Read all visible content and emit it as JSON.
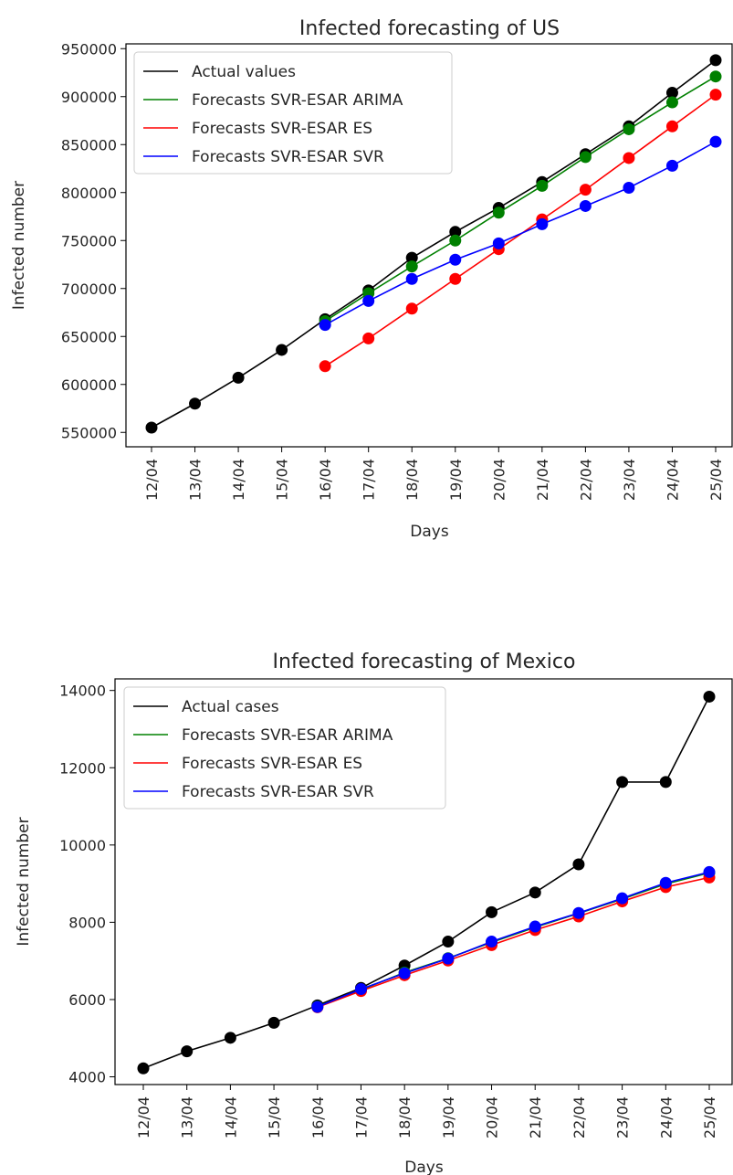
{
  "chart_data": [
    {
      "type": "line",
      "title": "Infected forecasting of US",
      "xlabel": "Days",
      "ylabel": "Infected number",
      "categories": [
        "12/04",
        "13/04",
        "14/04",
        "15/04",
        "16/04",
        "17/04",
        "18/04",
        "19/04",
        "20/04",
        "21/04",
        "22/04",
        "23/04",
        "24/04",
        "25/04"
      ],
      "ylim": [
        535000,
        955000
      ],
      "yticks": [
        550000,
        600000,
        650000,
        700000,
        750000,
        800000,
        850000,
        900000,
        950000
      ],
      "grid": false,
      "legend_position": "top-left",
      "series": [
        {
          "name": "Actual values",
          "color": "#000000",
          "values": [
            555000,
            580000,
            607000,
            636000,
            668000,
            698000,
            732000,
            759000,
            784000,
            811000,
            840000,
            869000,
            904000,
            938000
          ]
        },
        {
          "name": "Forecasts SVR-ESAR ARIMA",
          "color": "#008000",
          "values": [
            null,
            null,
            null,
            null,
            666000,
            695000,
            723000,
            750000,
            779000,
            807000,
            837000,
            866000,
            894000,
            921000
          ]
        },
        {
          "name": "Forecasts SVR-ESAR ES",
          "color": "#ff0000",
          "values": [
            null,
            null,
            null,
            null,
            619000,
            648000,
            679000,
            710000,
            741000,
            772000,
            803000,
            836000,
            869000,
            902000
          ]
        },
        {
          "name": "Forecasts SVR-ESAR SVR",
          "color": "#0000ff",
          "values": [
            null,
            null,
            null,
            null,
            662000,
            687000,
            710000,
            730000,
            747000,
            767000,
            786000,
            805000,
            828000,
            853000
          ]
        }
      ]
    },
    {
      "type": "line",
      "title": "Infected forecasting of Mexico",
      "xlabel": "Days",
      "ylabel": "Infected number",
      "categories": [
        "12/04",
        "13/04",
        "14/04",
        "15/04",
        "16/04",
        "17/04",
        "18/04",
        "19/04",
        "20/04",
        "21/04",
        "22/04",
        "23/04",
        "24/04",
        "25/04"
      ],
      "ylim": [
        3800,
        14300
      ],
      "yticks": [
        4000,
        6000,
        8000,
        10000,
        12000,
        14000
      ],
      "grid": false,
      "legend_position": "top-left",
      "series": [
        {
          "name": "Actual cases",
          "color": "#000000",
          "values": [
            4220,
            4660,
            5010,
            5400,
            5850,
            6300,
            6880,
            7500,
            8260,
            8770,
            9500,
            11630,
            11630,
            13840
          ]
        },
        {
          "name": "Forecasts SVR-ESAR ARIMA",
          "color": "#008000",
          "values": [
            null,
            null,
            null,
            null,
            5820,
            6250,
            6700,
            7070,
            7480,
            7870,
            8230,
            8600,
            8990,
            9280
          ]
        },
        {
          "name": "Forecasts SVR-ESAR ES",
          "color": "#ff0000",
          "values": [
            null,
            null,
            null,
            null,
            5800,
            6220,
            6630,
            7010,
            7410,
            7800,
            8150,
            8540,
            8910,
            9160
          ]
        },
        {
          "name": "Forecasts SVR-ESAR SVR",
          "color": "#0000ff",
          "values": [
            null,
            null,
            null,
            null,
            5810,
            6270,
            6680,
            7060,
            7500,
            7890,
            8240,
            8620,
            9020,
            9300
          ]
        }
      ]
    }
  ]
}
